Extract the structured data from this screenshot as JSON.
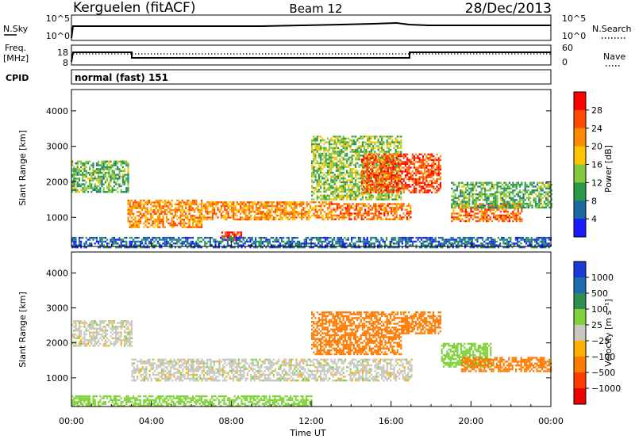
{
  "header": {
    "station": "Kerguelen (fitACF)",
    "beam": "Beam 12",
    "date": "28/Dec/2013"
  },
  "panels": {
    "nsky": {
      "left_label": "N.Sky",
      "right_label": "N.Search",
      "left_ticks": [
        "10^5",
        "10^0"
      ],
      "right_ticks": [
        "10^5",
        "10^0"
      ]
    },
    "freq": {
      "left_label_1": "Freq.",
      "left_label_2": "[MHz]",
      "right_label": "Nave",
      "left_ticks": [
        "18",
        "8"
      ],
      "right_ticks": [
        "60",
        "0"
      ]
    },
    "cpid": {
      "label": "CPID",
      "text": "normal (fast) 151"
    }
  },
  "power_colorbar": {
    "label": "Power [dB]",
    "ticks": [
      "28",
      "24",
      "20",
      "16",
      "12",
      "8",
      "4"
    ],
    "colors": [
      "#ff0000",
      "#ff4a00",
      "#ff8a00",
      "#ffc400",
      "#86c83c",
      "#2a9a4a",
      "#1a6aa0",
      "#1a1aff"
    ]
  },
  "velocity_colorbar": {
    "label": "Velocity [m s⁻¹]",
    "ticks": [
      "1000",
      "500",
      "100",
      "25",
      "−25",
      "−100",
      "−500",
      "−1000"
    ],
    "colors": [
      "#1a3ad8",
      "#1e6cb0",
      "#2d8f50",
      "#7fd23a",
      "#c8c8c0",
      "#ffb000",
      "#ff7a00",
      "#ff3c00",
      "#ee0000"
    ]
  },
  "axes": {
    "ylabel": "Slant Range [km]",
    "xlabel": "Time UT",
    "yticks": [
      "4000",
      "3000",
      "2000",
      "1000"
    ],
    "xticks": [
      "00:00",
      "04:00",
      "08:00",
      "12:00",
      "16:00",
      "20:00",
      "00:00"
    ]
  },
  "chart_data": {
    "type": "heatmap",
    "title": "Kerguelen (fitACF)",
    "subtitle": "Beam 12 — 28/Dec/2013",
    "x_range_hours": [
      0,
      24
    ],
    "y_range_km": [
      180,
      4600
    ],
    "freq_steps": [
      {
        "from_hour": 0,
        "to_hour": 2.9,
        "freq_mhz": 13
      },
      {
        "from_hour": 2.9,
        "to_hour": 17.0,
        "freq_mhz": 10
      },
      {
        "from_hour": 17.0,
        "to_hour": 24,
        "freq_mhz": 13
      }
    ],
    "power_regions": [
      {
        "t": [
          0,
          2.8
        ],
        "range": [
          1700,
          2600
        ],
        "power_db": 12
      },
      {
        "t": [
          2.8,
          6.5
        ],
        "range": [
          700,
          1500
        ],
        "power_db": 22
      },
      {
        "t": [
          6.5,
          13.0
        ],
        "range": [
          950,
          1450
        ],
        "power_db": 22
      },
      {
        "t": [
          13.0,
          17.0
        ],
        "range": [
          950,
          1400
        ],
        "power_db": 24
      },
      {
        "t": [
          12.0,
          16.5
        ],
        "range": [
          1500,
          3300
        ],
        "power_db": 14
      },
      {
        "t": [
          14.5,
          18.5
        ],
        "range": [
          1700,
          2800
        ],
        "power_db": 26
      },
      {
        "t": [
          19.0,
          22.5
        ],
        "range": [
          900,
          1400
        ],
        "power_db": 24
      },
      {
        "t": [
          19.0,
          24.0
        ],
        "range": [
          1300,
          2000
        ],
        "power_db": 12
      },
      {
        "t": [
          7.5,
          8.5
        ],
        "range": [
          350,
          600
        ],
        "power_db": 28
      },
      {
        "t": [
          0,
          24
        ],
        "range": [
          180,
          450
        ],
        "power_db": 6
      }
    ],
    "velocity_regions": [
      {
        "t": [
          0,
          3.0
        ],
        "range": [
          1900,
          2650
        ],
        "velocity": 0
      },
      {
        "t": [
          3.0,
          17.0
        ],
        "range": [
          900,
          1550
        ],
        "velocity": 0
      },
      {
        "t": [
          12.0,
          16.5
        ],
        "range": [
          1700,
          2900
        ],
        "velocity": -150
      },
      {
        "t": [
          16.5,
          18.5
        ],
        "range": [
          2300,
          2900
        ],
        "velocity": -300
      },
      {
        "t": [
          18.5,
          21.0
        ],
        "range": [
          1300,
          2000
        ],
        "velocity": 60
      },
      {
        "t": [
          19.5,
          24.0
        ],
        "range": [
          1200,
          1600
        ],
        "velocity": -300
      },
      {
        "t": [
          0,
          12.0
        ],
        "range": [
          180,
          500
        ],
        "velocity": 60
      }
    ]
  }
}
